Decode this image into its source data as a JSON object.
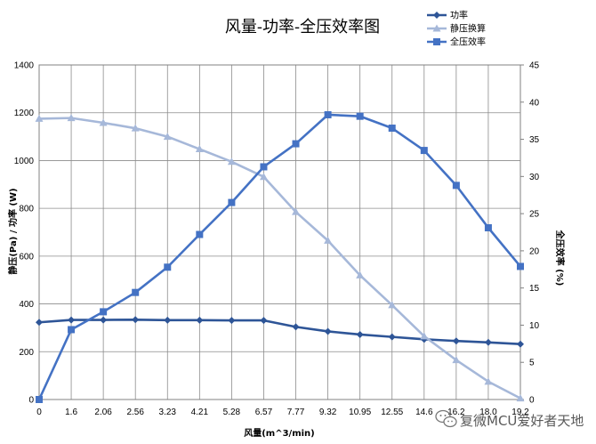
{
  "chart_data": {
    "type": "line",
    "title": "风量-功率-全压效率图",
    "xlabel": "风量(m^3/min)",
    "ylabel_left": "静压(Pa) / 功率 (W)",
    "ylabel_right": "全压效率 (%)",
    "categories": [
      "0",
      "1.6",
      "2.06",
      "2.56",
      "3.23",
      "4.21",
      "5.28",
      "6.57",
      "7.77",
      "9.32",
      "10.95",
      "12.55",
      "14.6",
      "16.2",
      "18.0",
      "19.2"
    ],
    "categories_display": [
      "0",
      "1.6",
      "2.06",
      "2.56",
      "3.23",
      "4.21",
      "5.28",
      "6.57",
      "7.77",
      "9.32",
      "10.95",
      "12.55",
      "14.6",
      "16.2",
      "18.0",
      "19.2"
    ],
    "ylim_left": [
      0,
      1400
    ],
    "ylim_right": [
      0,
      45
    ],
    "yticks_left": [
      0,
      200,
      400,
      600,
      800,
      1000,
      1200,
      1400
    ],
    "yticks_right": [
      0,
      5,
      10,
      15,
      20,
      25,
      30,
      35,
      40,
      45
    ],
    "grid": true,
    "legend_position": "top-right",
    "series": [
      {
        "name": "功率",
        "axis": "left",
        "marker": "diamond",
        "color": "#2E5597",
        "values": [
          323,
          333,
          333,
          334,
          332,
          332,
          331,
          331,
          304,
          285,
          272,
          262,
          252,
          245,
          239,
          232
        ]
      },
      {
        "name": "静压换算",
        "axis": "left",
        "marker": "triangle",
        "color": "#A6B8D9",
        "values": [
          1175,
          1178,
          1158,
          1135,
          1100,
          1048,
          995,
          932,
          785,
          665,
          520,
          395,
          265,
          165,
          75,
          5
        ]
      },
      {
        "name": "全压效率",
        "axis": "right",
        "marker": "square",
        "color": "#4472C4",
        "values": [
          0,
          9.4,
          11.8,
          14.4,
          17.8,
          22.2,
          26.5,
          31.3,
          34.4,
          38.3,
          38.1,
          36.5,
          33.5,
          28.8,
          23.1,
          17.9
        ]
      }
    ]
  },
  "watermark": {
    "text": "复微MCU爱好者天地",
    "icon": "wechat-icon"
  }
}
